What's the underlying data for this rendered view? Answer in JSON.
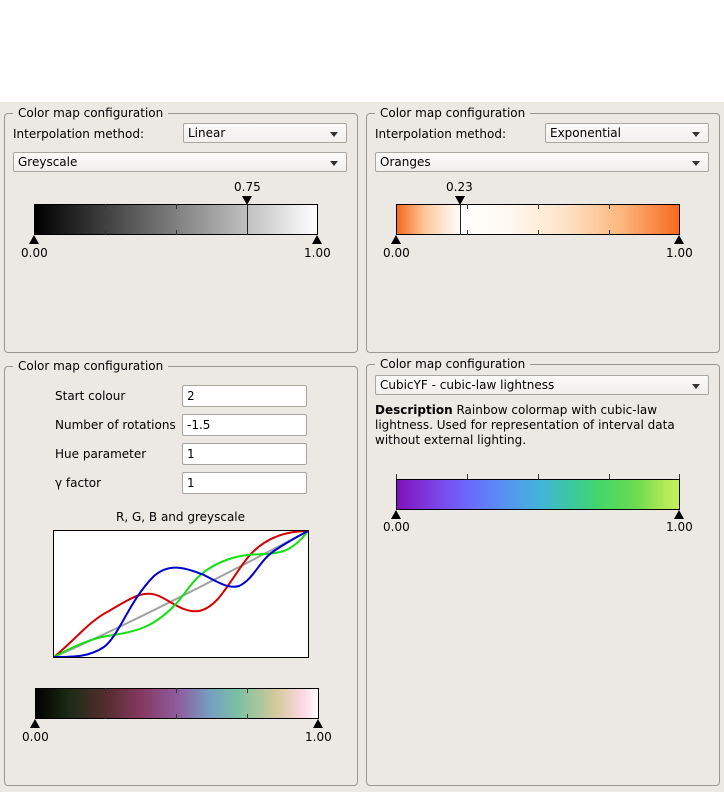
{
  "group_title": "Color map configuration",
  "panel1": {
    "interp_label": "Interpolation method:",
    "interp_value": "Linear",
    "colormap_value": "Greyscale",
    "marker_value": "0.75",
    "marker_fraction": 0.75,
    "min_label": "0.00",
    "max_label": "1.00"
  },
  "panel2": {
    "interp_label": "Interpolation method:",
    "interp_value": "Exponential",
    "colormap_value": "Oranges",
    "marker_value": "0.23",
    "marker_fraction": 0.23,
    "min_label": "0.00",
    "max_label": "1.00"
  },
  "panel3": {
    "start_colour_label": "Start colour",
    "start_colour_value": "2",
    "rotations_label": "Number of rotations",
    "rotations_value": "-1.5",
    "hue_label": "Hue parameter",
    "hue_value": "1",
    "gamma_label": "γ factor",
    "gamma_value": "1",
    "plot_title": "R, G, B and greyscale",
    "min_label": "0.00",
    "max_label": "1.00"
  },
  "panel4": {
    "colormap_value": "CubicYF - cubic-law lightness",
    "description_heading": "Description",
    "description_text": "Rainbow colormap with cubic-law lightness. Used for representation of interval data without external lighting.",
    "min_label": "0.00",
    "max_label": "1.00"
  },
  "colors": {
    "background": "#ece9e4",
    "red_curve": "#d40000",
    "green_curve": "#11e011",
    "blue_curve": "#0000cc",
    "grey_curve": "#a0a0a0"
  }
}
